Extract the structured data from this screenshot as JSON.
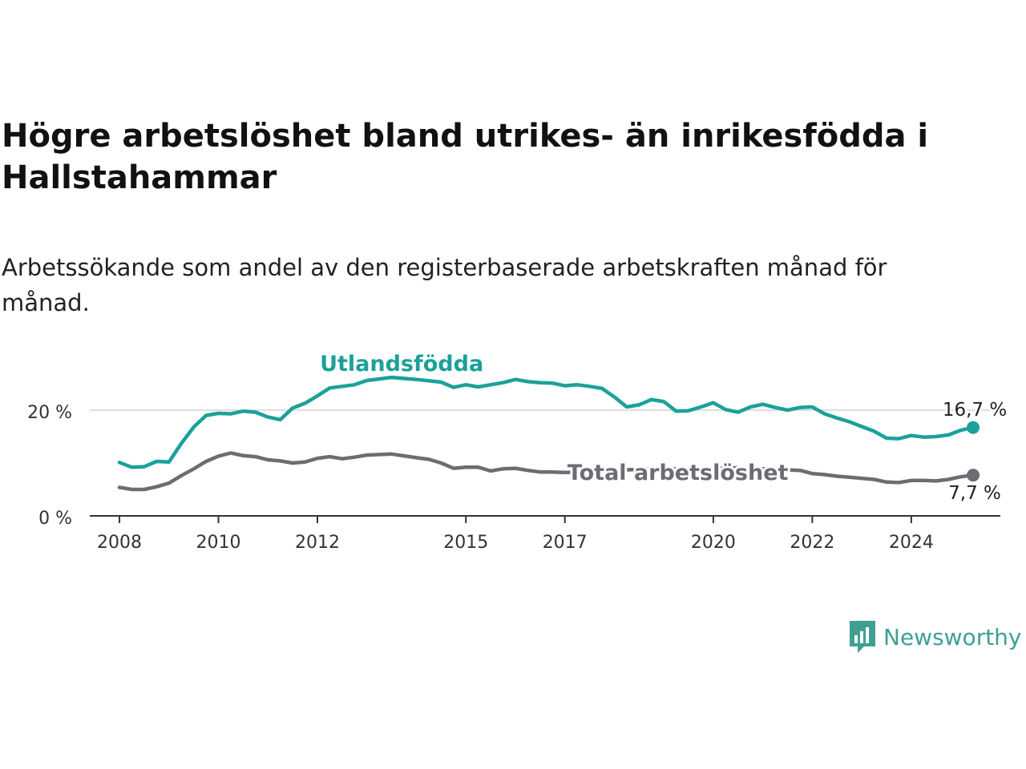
{
  "title": "Högre arbetslöshet bland utrikes- än inrikesfödda i Hallstahammar",
  "subtitle": "Arbetssökande som andel av den registerbaserade arbetskraften månad för månad.",
  "brand": {
    "name": "Newsworthy",
    "icon": "newsworthy-logo-icon",
    "color": "#3f9f93"
  },
  "chart_data": {
    "type": "line",
    "title": "Högre arbetslöshet bland utrikes- än inrikesfödda i Hallstahammar",
    "subtitle": "Arbetssökande som andel av den registerbaserade arbetskraften månad för månad.",
    "xlabel": "",
    "ylabel": "",
    "xlim": [
      2007.4,
      2025.8
    ],
    "ylim": [
      0,
      30
    ],
    "y_ticks": [
      0,
      20
    ],
    "y_tick_labels": [
      "0 %",
      "20 %"
    ],
    "x_ticks": [
      2008,
      2010,
      2012,
      2015,
      2017,
      2020,
      2022,
      2024
    ],
    "x_tick_labels": [
      "2008",
      "2010",
      "2012",
      "2015",
      "2017",
      "2020",
      "2022",
      "2024"
    ],
    "grid": "horizontal at 20",
    "legend": "inline labels",
    "series": [
      {
        "name": "Utlandsfödda",
        "color": "#1ba199",
        "end_label": "16,7 %",
        "points": [
          [
            2008.0,
            10.1
          ],
          [
            2008.25,
            9.2
          ],
          [
            2008.5,
            9.3
          ],
          [
            2008.75,
            10.3
          ],
          [
            2009.0,
            10.2
          ],
          [
            2009.25,
            13.7
          ],
          [
            2009.5,
            16.8
          ],
          [
            2009.75,
            19.0
          ],
          [
            2010.0,
            19.4
          ],
          [
            2010.25,
            19.3
          ],
          [
            2010.5,
            19.8
          ],
          [
            2010.75,
            19.6
          ],
          [
            2011.0,
            18.7
          ],
          [
            2011.25,
            18.2
          ],
          [
            2011.5,
            20.4
          ],
          [
            2011.75,
            21.3
          ],
          [
            2012.0,
            22.7
          ],
          [
            2012.25,
            24.2
          ],
          [
            2012.5,
            24.5
          ],
          [
            2012.75,
            24.8
          ],
          [
            2013.0,
            25.6
          ],
          [
            2013.5,
            26.2
          ],
          [
            2014.0,
            25.8
          ],
          [
            2014.5,
            25.3
          ],
          [
            2014.75,
            24.3
          ],
          [
            2015.0,
            24.8
          ],
          [
            2015.25,
            24.4
          ],
          [
            2015.5,
            24.8
          ],
          [
            2015.75,
            25.2
          ],
          [
            2016.0,
            25.8
          ],
          [
            2016.25,
            25.4
          ],
          [
            2016.5,
            25.2
          ],
          [
            2016.75,
            25.1
          ],
          [
            2017.0,
            24.6
          ],
          [
            2017.25,
            24.8
          ],
          [
            2017.5,
            24.5
          ],
          [
            2017.75,
            24.1
          ],
          [
            2018.0,
            22.5
          ],
          [
            2018.25,
            20.6
          ],
          [
            2018.5,
            21.0
          ],
          [
            2018.75,
            22.0
          ],
          [
            2019.0,
            21.6
          ],
          [
            2019.25,
            19.8
          ],
          [
            2019.5,
            19.9
          ],
          [
            2019.75,
            20.6
          ],
          [
            2020.0,
            21.4
          ],
          [
            2020.25,
            20.1
          ],
          [
            2020.5,
            19.6
          ],
          [
            2020.75,
            20.6
          ],
          [
            2021.0,
            21.1
          ],
          [
            2021.25,
            20.5
          ],
          [
            2021.5,
            20.0
          ],
          [
            2021.75,
            20.5
          ],
          [
            2022.0,
            20.6
          ],
          [
            2022.25,
            19.3
          ],
          [
            2022.5,
            18.5
          ],
          [
            2022.75,
            17.8
          ],
          [
            2023.0,
            16.9
          ],
          [
            2023.25,
            16.0
          ],
          [
            2023.5,
            14.7
          ],
          [
            2023.75,
            14.6
          ],
          [
            2024.0,
            15.2
          ],
          [
            2024.25,
            14.9
          ],
          [
            2024.5,
            15.0
          ],
          [
            2024.75,
            15.3
          ],
          [
            2025.0,
            16.2
          ],
          [
            2025.25,
            16.7
          ]
        ]
      },
      {
        "name": "Total arbetslöshet",
        "color": "#6e6b72",
        "end_label": "7,7 %",
        "points": [
          [
            2008.0,
            5.4
          ],
          [
            2008.25,
            5.0
          ],
          [
            2008.5,
            5.0
          ],
          [
            2008.75,
            5.5
          ],
          [
            2009.0,
            6.2
          ],
          [
            2009.25,
            7.6
          ],
          [
            2009.5,
            8.9
          ],
          [
            2009.75,
            10.3
          ],
          [
            2010.0,
            11.3
          ],
          [
            2010.25,
            11.9
          ],
          [
            2010.5,
            11.4
          ],
          [
            2010.75,
            11.2
          ],
          [
            2011.0,
            10.6
          ],
          [
            2011.25,
            10.4
          ],
          [
            2011.5,
            10.0
          ],
          [
            2011.75,
            10.2
          ],
          [
            2012.0,
            10.9
          ],
          [
            2012.25,
            11.2
          ],
          [
            2012.5,
            10.8
          ],
          [
            2012.75,
            11.1
          ],
          [
            2013.0,
            11.5
          ],
          [
            2013.5,
            11.7
          ],
          [
            2014.0,
            11.0
          ],
          [
            2014.25,
            10.7
          ],
          [
            2014.5,
            10.0
          ],
          [
            2014.75,
            9.0
          ],
          [
            2015.0,
            9.2
          ],
          [
            2015.25,
            9.2
          ],
          [
            2015.5,
            8.5
          ],
          [
            2015.75,
            8.9
          ],
          [
            2016.0,
            9.0
          ],
          [
            2016.25,
            8.6
          ],
          [
            2016.5,
            8.3
          ],
          [
            2016.75,
            8.3
          ],
          [
            2017.0,
            8.2
          ],
          [
            2017.5,
            8.4
          ],
          [
            2018.0,
            8.6
          ],
          [
            2018.5,
            8.8
          ],
          [
            2019.0,
            8.9
          ],
          [
            2019.5,
            8.8
          ],
          [
            2020.0,
            9.0
          ],
          [
            2020.5,
            9.1
          ],
          [
            2021.0,
            8.9
          ],
          [
            2021.5,
            8.7
          ],
          [
            2021.75,
            8.6
          ],
          [
            2022.0,
            8.0
          ],
          [
            2022.25,
            7.8
          ],
          [
            2022.5,
            7.5
          ],
          [
            2022.75,
            7.3
          ],
          [
            2023.0,
            7.1
          ],
          [
            2023.25,
            6.9
          ],
          [
            2023.5,
            6.4
          ],
          [
            2023.75,
            6.3
          ],
          [
            2024.0,
            6.7
          ],
          [
            2024.25,
            6.7
          ],
          [
            2024.5,
            6.6
          ],
          [
            2024.75,
            6.9
          ],
          [
            2025.0,
            7.4
          ],
          [
            2025.25,
            7.7
          ]
        ]
      }
    ]
  }
}
